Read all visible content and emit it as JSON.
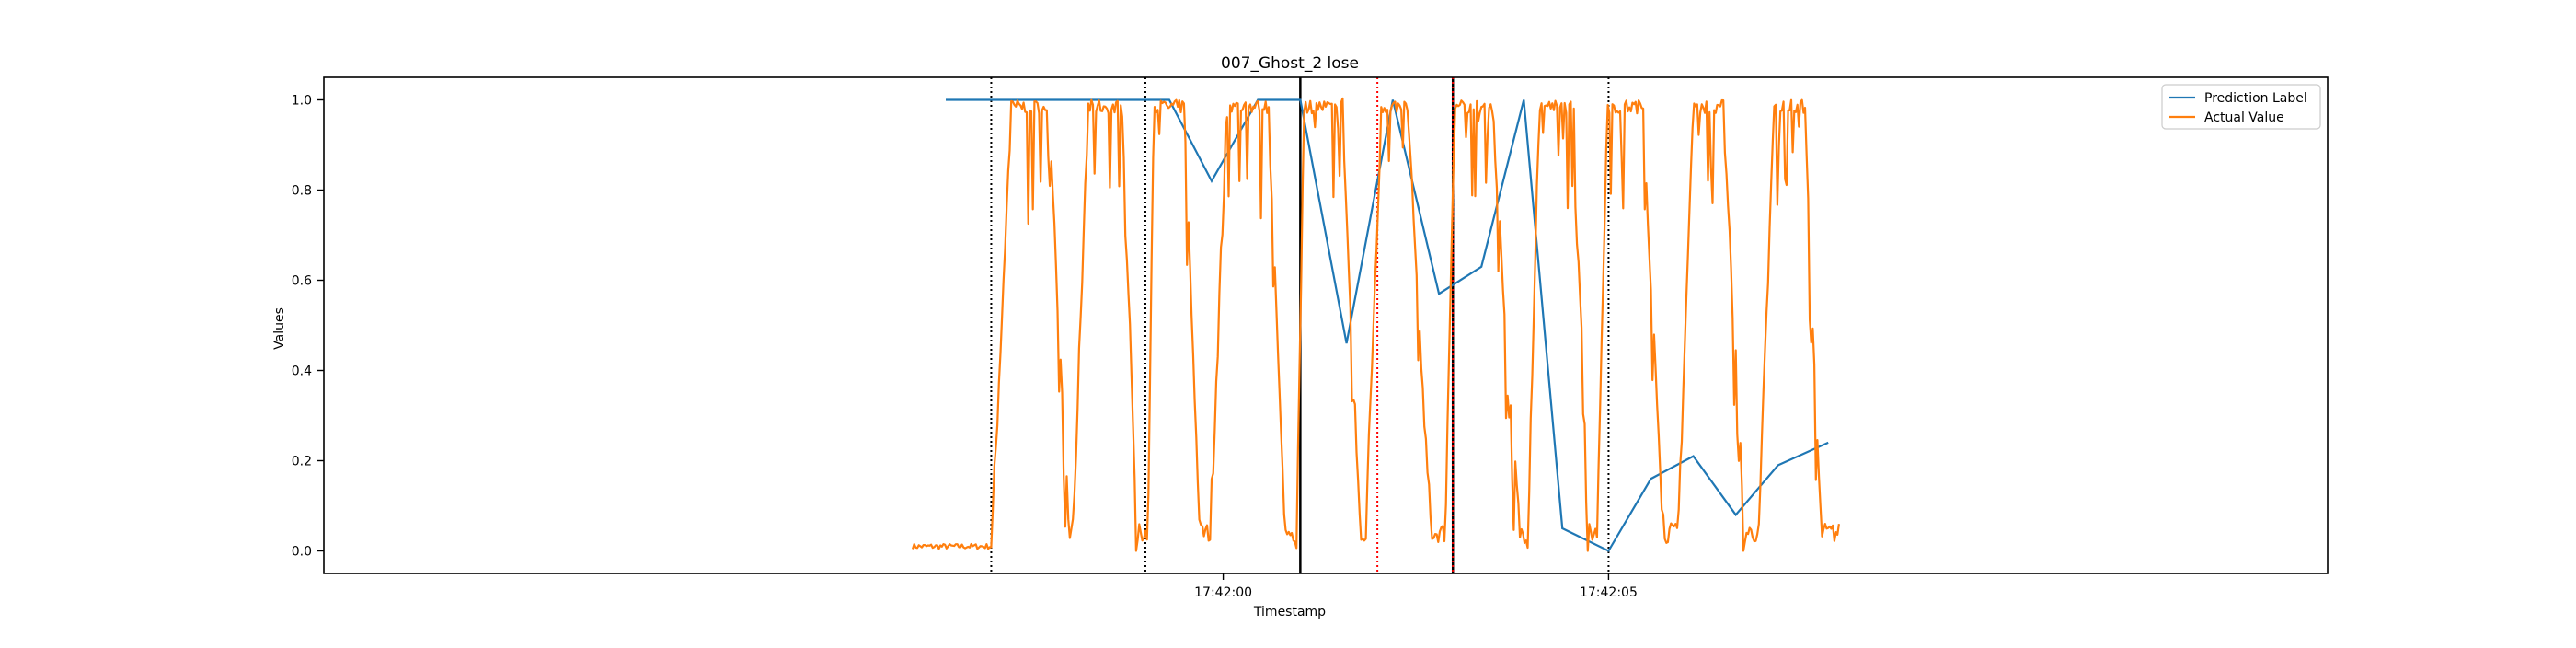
{
  "chart_data": {
    "type": "line",
    "title": "007_Ghost_2 lose",
    "xlabel": "Timestamp",
    "ylabel": "Values",
    "x_domain_seconds": [
      -11.67,
      14.33
    ],
    "x_ticks": [
      {
        "value": 0,
        "label": "17:42:00"
      },
      {
        "value": 5,
        "label": "17:42:05"
      }
    ],
    "ylim": [
      -0.05,
      1.05
    ],
    "y_ticks": [
      {
        "value": 0.0,
        "label": "0.0"
      },
      {
        "value": 0.2,
        "label": "0.2"
      },
      {
        "value": 0.4,
        "label": "0.4"
      },
      {
        "value": 0.6,
        "label": "0.6"
      },
      {
        "value": 0.8,
        "label": "0.8"
      },
      {
        "value": 1.0,
        "label": "1.0"
      }
    ],
    "grid": false,
    "legend": {
      "placement": "top-right"
    },
    "vertical_lines": [
      {
        "x": -3.01,
        "color": "#000000",
        "style": "dotted"
      },
      {
        "x": -1.01,
        "color": "#000000",
        "style": "dotted"
      },
      {
        "x": 1.0,
        "color": "#000000",
        "style": "solid"
      },
      {
        "x": 2.0,
        "color": "#ff0000",
        "style": "dotted"
      },
      {
        "x": 2.98,
        "color": "#000000",
        "style": "solid"
      },
      {
        "x": 2.98,
        "color": "#ff0000",
        "style": "dotted"
      },
      {
        "x": 5.0,
        "color": "#000000",
        "style": "dotted"
      }
    ],
    "series": [
      {
        "name": "Prediction Label",
        "color": "#1f77b4",
        "x": [
          -3.6,
          -0.7,
          -0.15,
          0.45,
          1.0,
          1.6,
          2.2,
          2.8,
          3.35,
          3.9,
          4.4,
          5.0,
          5.55,
          6.1,
          6.65,
          7.2,
          7.85
        ],
        "y": [
          1.0,
          1.0,
          0.82,
          1.0,
          1.0,
          0.46,
          1.0,
          0.57,
          0.63,
          1.0,
          0.05,
          0.0,
          0.16,
          0.21,
          0.08,
          0.19,
          0.24
        ]
      },
      {
        "name": "Actual Value",
        "color": "#ff7f0e",
        "sampling_step": 0.04,
        "x_start": -4.03,
        "x_end": 8.0,
        "low_level": 0.04,
        "high_level": 0.985,
        "pre_start_level": 0.01,
        "first_rise": -3.0,
        "cycles": [
          {
            "rise_start": -3.0,
            "high_start": -2.75,
            "high_end": -2.25,
            "low_start": -2.0
          },
          {
            "rise_start": -1.95,
            "high_start": -1.75,
            "high_end": -1.3,
            "low_start": -1.12
          },
          {
            "rise_start": -0.98,
            "high_start": -0.9,
            "high_end": -0.5,
            "low_start": -0.3
          },
          {
            "rise_start": -0.17,
            "high_start": 0.05,
            "high_end": 0.6,
            "low_start": 0.8
          },
          {
            "rise_start": 0.95,
            "high_start": 1.05,
            "high_end": 1.55,
            "low_start": 1.78
          },
          {
            "rise_start": 1.85,
            "high_start": 2.05,
            "high_end": 2.4,
            "low_start": 2.7
          },
          {
            "rise_start": 2.88,
            "high_start": 3.0,
            "high_end": 3.5,
            "low_start": 3.85
          },
          {
            "rise_start": 3.95,
            "high_start": 4.1,
            "high_end": 4.55,
            "low_start": 4.75
          },
          {
            "rise_start": 4.85,
            "high_start": 4.98,
            "high_end": 5.45,
            "low_start": 5.72
          },
          {
            "rise_start": 5.9,
            "high_start": 6.1,
            "high_end": 6.5,
            "low_start": 6.77
          },
          {
            "rise_start": 6.95,
            "high_start": 7.15,
            "high_end": 7.55,
            "low_start": 7.76
          }
        ]
      }
    ]
  }
}
